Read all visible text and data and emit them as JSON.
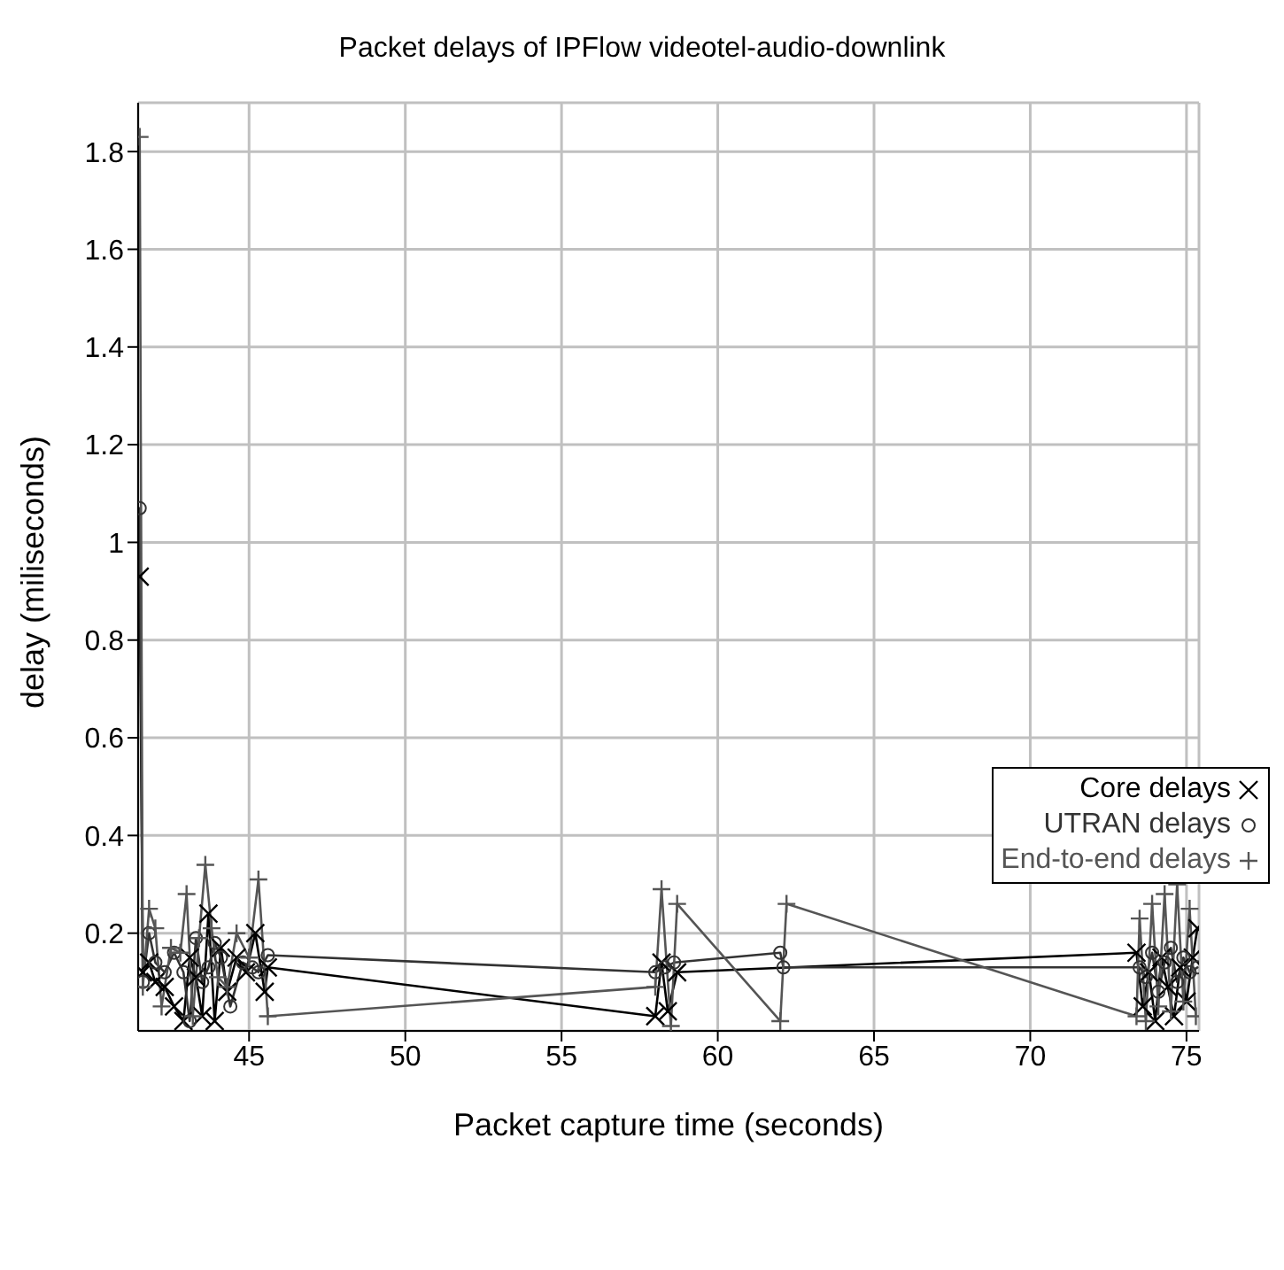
{
  "chart_data": {
    "type": "line",
    "title": "Packet delays of IPFlow videotel-audio-downlink",
    "xlabel": "Packet capture time (seconds)",
    "ylabel": "delay (miliseconds)",
    "xlim": [
      41.45,
      75.4
    ],
    "xticks": [
      45,
      50,
      55,
      60,
      65,
      70,
      75
    ],
    "ylim": [
      0,
      1.9
    ],
    "yticks": [
      0.2,
      0.4,
      0.6,
      0.8,
      1,
      1.2,
      1.4,
      1.6,
      1.8
    ],
    "grid": true,
    "legend": "right",
    "series": [
      {
        "name": "Core delays",
        "color": "#000000",
        "marker": "cross",
        "x": [
          41.5,
          41.6,
          41.8,
          42.0,
          42.3,
          42.6,
          42.9,
          43.1,
          43.3,
          43.5,
          43.7,
          43.9,
          44.1,
          44.3,
          44.6,
          44.9,
          45.2,
          45.5,
          45.6,
          58.0,
          58.2,
          58.4,
          58.7,
          73.4,
          73.6,
          73.8,
          74.0,
          74.2,
          74.4,
          74.6,
          74.8,
          75.0,
          75.2,
          75.35
        ],
        "values": [
          0.93,
          0.12,
          0.14,
          0.1,
          0.09,
          0.05,
          0.02,
          0.15,
          0.11,
          0.03,
          0.24,
          0.02,
          0.17,
          0.08,
          0.15,
          0.12,
          0.2,
          0.08,
          0.13,
          0.03,
          0.14,
          0.04,
          0.12,
          0.16,
          0.05,
          0.12,
          0.02,
          0.15,
          0.09,
          0.03,
          0.13,
          0.06,
          0.15,
          0.21
        ]
      },
      {
        "name": "UTRAN delays",
        "color": "#333333",
        "marker": "circle",
        "x": [
          41.5,
          41.6,
          41.8,
          42.0,
          42.3,
          42.6,
          42.9,
          43.1,
          43.3,
          43.5,
          43.7,
          43.9,
          44.1,
          44.4,
          44.8,
          45.1,
          45.3,
          45.6,
          58.0,
          58.3,
          58.6,
          62.0,
          62.1,
          73.5,
          73.7,
          73.9,
          74.1,
          74.3,
          74.5,
          74.7,
          74.9,
          75.1,
          75.35
        ],
        "values": [
          1.07,
          0.1,
          0.2,
          0.14,
          0.12,
          0.16,
          0.12,
          0.02,
          0.19,
          0.1,
          0.13,
          0.18,
          0.15,
          0.05,
          0.14,
          0.13,
          0.12,
          0.155,
          0.12,
          0.13,
          0.14,
          0.16,
          0.13,
          0.13,
          0.11,
          0.16,
          0.08,
          0.14,
          0.17,
          0.1,
          0.15,
          0.12,
          0.13
        ]
      },
      {
        "name": "End-to-end delays",
        "color": "#555555",
        "marker": "plus",
        "x": [
          41.5,
          41.6,
          41.8,
          42.0,
          42.2,
          42.5,
          42.8,
          43.0,
          43.2,
          43.4,
          43.6,
          43.8,
          44.0,
          44.3,
          44.6,
          45.0,
          45.3,
          45.6,
          58.0,
          58.2,
          58.5,
          58.7,
          62.0,
          62.2,
          73.4,
          73.5,
          73.7,
          73.9,
          74.1,
          74.3,
          74.5,
          74.7,
          74.9,
          75.1,
          75.3
        ],
        "values": [
          1.83,
          0.09,
          0.25,
          0.21,
          0.05,
          0.17,
          0.16,
          0.28,
          0.03,
          0.19,
          0.34,
          0.21,
          0.11,
          0.09,
          0.2,
          0.15,
          0.31,
          0.03,
          0.09,
          0.29,
          0.01,
          0.26,
          0.02,
          0.26,
          0.03,
          0.23,
          0.02,
          0.26,
          0.05,
          0.28,
          0.04,
          0.3,
          0.06,
          0.25,
          0.03
        ]
      }
    ]
  }
}
